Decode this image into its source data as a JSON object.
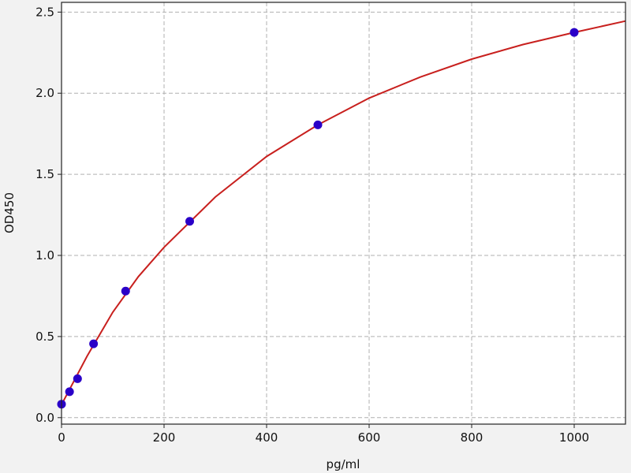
{
  "chart_data": {
    "type": "scatter",
    "title": "",
    "xlabel": "pg/ml",
    "ylabel": "OD450",
    "xlim": [
      0,
      1100
    ],
    "ylim": [
      -0.04,
      2.56
    ],
    "xticks": [
      0,
      200,
      400,
      600,
      800,
      1000
    ],
    "yticks": [
      0.0,
      0.5,
      1.0,
      1.5,
      2.0,
      2.5
    ],
    "ytick_labels": [
      "0.0",
      "0.5",
      "1.0",
      "1.5",
      "2.0",
      "2.5"
    ],
    "grid": true,
    "series": [
      {
        "kind": "points",
        "x": [
          0,
          15.625,
          31.25,
          62.5,
          125,
          250,
          500,
          1000
        ],
        "y": [
          0.083,
          0.16,
          0.24,
          0.455,
          0.78,
          1.21,
          1.805,
          2.375
        ],
        "color": "#2a00c8"
      },
      {
        "kind": "fit-line",
        "x": [
          0,
          50,
          100,
          150,
          200,
          300,
          400,
          500,
          600,
          700,
          800,
          900,
          1000,
          1100
        ],
        "y": [
          0.08,
          0.38,
          0.65,
          0.87,
          1.05,
          1.36,
          1.61,
          1.805,
          1.97,
          2.1,
          2.21,
          2.3,
          2.375,
          2.445
        ],
        "color": "#c8201e"
      }
    ]
  }
}
